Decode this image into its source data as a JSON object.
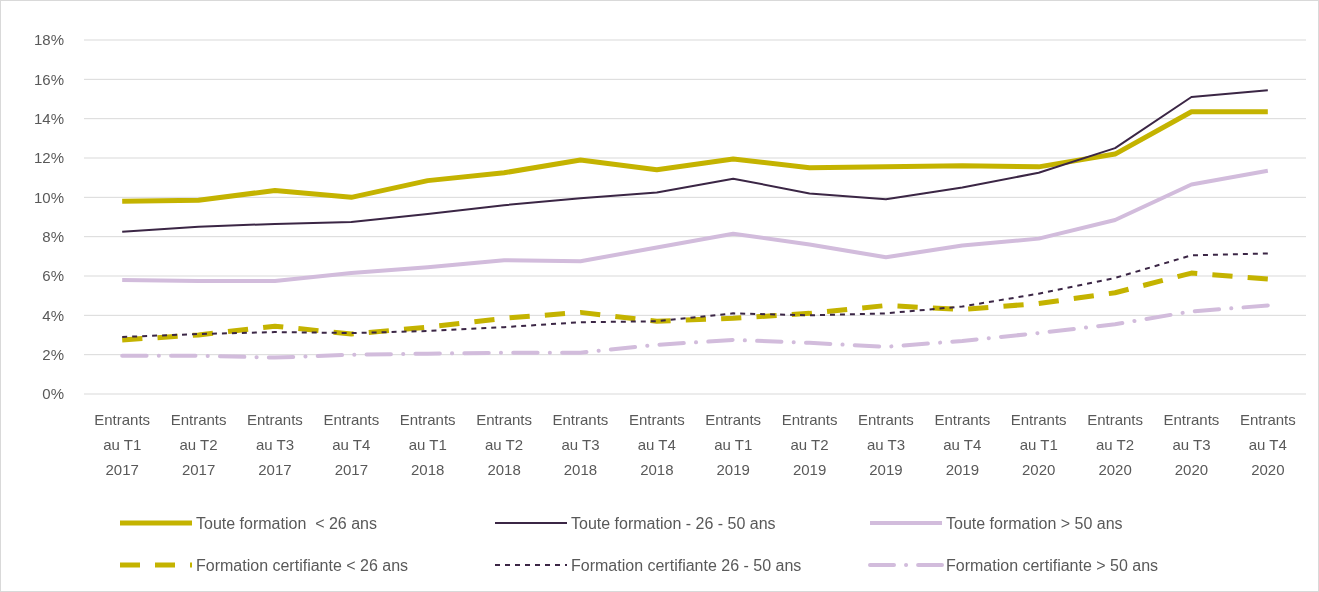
{
  "chart_data": {
    "type": "line",
    "categories": [
      "Entrants\nau T1\n2017",
      "Entrants\nau T2\n2017",
      "Entrants\nau T3\n2017",
      "Entrants\nau T4\n2017",
      "Entrants\nau T1\n2018",
      "Entrants\nau T2\n2018",
      "Entrants\nau T3\n2018",
      "Entrants\nau T4\n2018",
      "Entrants\nau T1\n2019",
      "Entrants\nau T2\n2019",
      "Entrants\nau T3\n2019",
      "Entrants\nau T4\n2019",
      "Entrants\nau T1\n2020",
      "Entrants\nau T2\n2020",
      "Entrants\nau T3\n2020",
      "Entrants\nau T4\n2020"
    ],
    "series": [
      {
        "name": "Toute formation  < 26 ans",
        "color": "#c4b300",
        "line_style": "solid",
        "values": [
          9.8,
          9.85,
          10.35,
          10.0,
          10.85,
          11.25,
          11.9,
          11.4,
          11.95,
          11.5,
          11.55,
          11.6,
          11.55,
          12.2,
          14.35,
          14.35
        ]
      },
      {
        "name": "Toute formation - 26 - 50 ans",
        "color": "#3b2645",
        "line_style": "solid",
        "values": [
          8.25,
          8.5,
          8.65,
          8.75,
          9.15,
          9.6,
          9.95,
          10.25,
          10.95,
          10.2,
          9.9,
          10.5,
          11.25,
          12.5,
          15.1,
          15.45
        ]
      },
      {
        "name": "Toute formation > 50 ans",
        "color": "#d2bcdc",
        "line_style": "solid",
        "values": [
          5.8,
          5.75,
          5.75,
          6.15,
          6.45,
          6.8,
          6.75,
          7.45,
          8.15,
          7.6,
          6.95,
          7.55,
          7.9,
          8.85,
          10.65,
          11.35
        ]
      },
      {
        "name": "Formation certifiante < 26 ans",
        "color": "#c4b300",
        "line_style": "dashed",
        "values": [
          2.75,
          3.0,
          3.45,
          3.05,
          3.4,
          3.85,
          4.15,
          3.7,
          3.85,
          4.1,
          4.5,
          4.3,
          4.6,
          5.15,
          6.15,
          5.85
        ]
      },
      {
        "name": "Formation certifiante 26 - 50 ans",
        "color": "#3b2645",
        "line_style": "dashed",
        "values": [
          2.9,
          3.05,
          3.15,
          3.1,
          3.2,
          3.4,
          3.65,
          3.7,
          4.1,
          4.0,
          4.1,
          4.45,
          5.1,
          5.9,
          7.05,
          7.15
        ]
      },
      {
        "name": "Formation certifiante > 50 ans",
        "color": "#d2bcdc",
        "line_style": "dashed",
        "values": [
          1.95,
          1.95,
          1.85,
          2.0,
          2.05,
          2.1,
          2.1,
          2.5,
          2.75,
          2.6,
          2.4,
          2.7,
          3.1,
          3.55,
          4.2,
          4.5
        ]
      }
    ],
    "ylim": [
      0,
      18
    ],
    "yticks": [
      {
        "value": 0,
        "label": "0%"
      },
      {
        "value": 2,
        "label": "2%"
      },
      {
        "value": 4,
        "label": "4%"
      },
      {
        "value": 6,
        "label": "6%"
      },
      {
        "value": 8,
        "label": "8%"
      },
      {
        "value": 10,
        "label": "10%"
      },
      {
        "value": 12,
        "label": "12%"
      },
      {
        "value": 14,
        "label": "14%"
      },
      {
        "value": 16,
        "label": "16%"
      },
      {
        "value": 18,
        "label": "18%"
      }
    ],
    "grid": "y",
    "legend": "bottom",
    "marker": "none"
  }
}
